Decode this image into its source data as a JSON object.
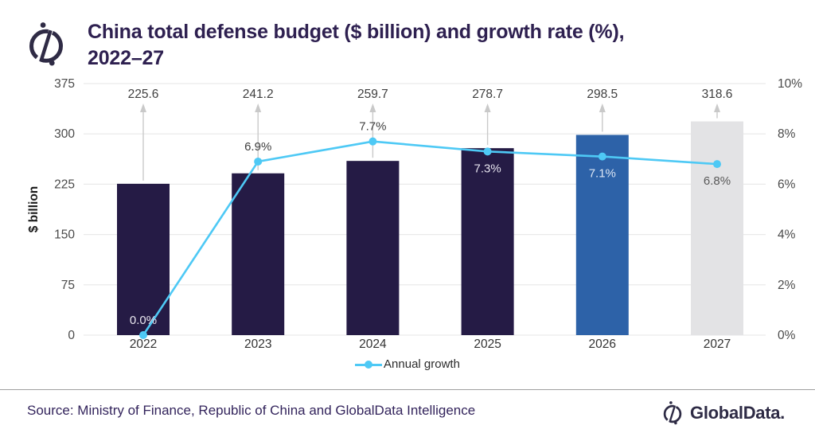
{
  "header": {
    "title_line1": "China total defense budget ($ billion) and growth rate (%),",
    "title_line2": "2022–27"
  },
  "chart_data": {
    "type": "combo-bar-line",
    "title": "China total defense budget ($ billion) and growth rate (%), 2022–27",
    "categories": [
      "2022",
      "2023",
      "2024",
      "2025",
      "2026",
      "2027"
    ],
    "series": [
      {
        "name": "Total defense budget ($ billion)",
        "type": "bar",
        "values": [
          225.6,
          241.2,
          259.7,
          278.7,
          298.5,
          318.6
        ],
        "value_labels": [
          "225.6",
          "241.2",
          "259.7",
          "278.7",
          "298.5",
          "318.6"
        ],
        "bar_colors": [
          "#251b45",
          "#251b45",
          "#251b45",
          "#251b45",
          "#2d62a8",
          "#e3e3e5"
        ]
      },
      {
        "name": "Annual growth",
        "type": "line",
        "color": "#4ec9f5",
        "values": [
          0.0,
          6.9,
          7.7,
          7.3,
          7.1,
          6.8
        ],
        "point_labels": [
          {
            "text": "0.0%",
            "pos": "above",
            "color": "#eae7f0"
          },
          {
            "text": "6.9%",
            "pos": "above",
            "color": "#404040"
          },
          {
            "text": "7.7%",
            "pos": "above",
            "color": "#404040"
          },
          {
            "text": "7.3%",
            "pos": "below",
            "color": "#e6e3ee"
          },
          {
            "text": "7.1%",
            "pos": "below",
            "color": "#dde7f5"
          },
          {
            "text": "6.8%",
            "pos": "below",
            "color": "#595959"
          }
        ]
      }
    ],
    "left_axis": {
      "label": "$ billion",
      "ticks": [
        0,
        75,
        150,
        225,
        300,
        375
      ],
      "max": 375
    },
    "right_axis": {
      "ticks": [
        "0%",
        "2%",
        "4%",
        "6%",
        "8%",
        "10%"
      ],
      "max": 10
    },
    "legend": {
      "label": "Annual growth"
    },
    "grid": true,
    "gridline_color": "#e9e9e9",
    "arrow_color": "#c9c9c9",
    "tick_label_color": "#4a4a4a",
    "value_label_color": "#3f3f3f"
  },
  "footer": {
    "source": "Source: Ministry of Finance, Republic of China and GlobalData Intelligence",
    "brand": "GlobalData."
  }
}
